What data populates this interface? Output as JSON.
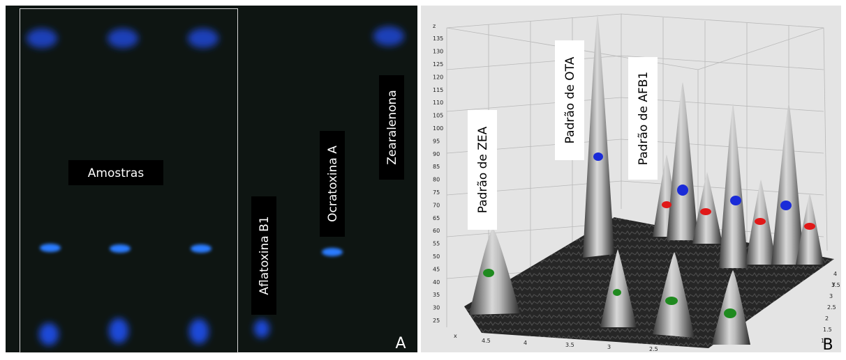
{
  "panel_a": {
    "labels": {
      "samples": "Amostras",
      "afb1": "Aflatoxina B1",
      "ota": "Ocratoxina A",
      "zea": "Zearalenona"
    },
    "letter": "A"
  },
  "panel_b": {
    "labels": {
      "zea": "Padrão de ZEA",
      "ota": "Padrão de OTA",
      "afb1": "Padrão de AFB1"
    },
    "letter": "B",
    "z_axis": "z",
    "x_axis": "x",
    "y_axis": "y",
    "z_ticks": [
      "25",
      "30",
      "35",
      "40",
      "45",
      "50",
      "55",
      "60",
      "65",
      "70",
      "75",
      "80",
      "85",
      "90",
      "95",
      "100",
      "105",
      "110",
      "115",
      "120",
      "125",
      "130",
      "135"
    ],
    "x_ticks": [
      "4.5",
      "4",
      "3.5",
      "3",
      "2.5"
    ],
    "y_ticks": [
      "1",
      "1.5",
      "2",
      "2.5",
      "3",
      "3.5",
      "4"
    ]
  }
}
